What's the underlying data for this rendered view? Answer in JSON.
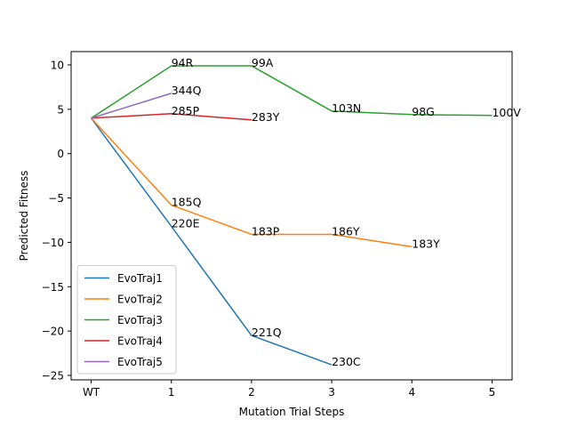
{
  "chart_data": {
    "type": "line",
    "title": "",
    "xlabel": "Mutation Trial Steps",
    "ylabel": "Predicted Fitness",
    "x_categories": [
      "WT",
      "1",
      "2",
      "3",
      "4",
      "5"
    ],
    "xlim": [
      -0.25,
      5.25
    ],
    "ylim": [
      -25.5,
      11.5
    ],
    "yticks": [
      10,
      5,
      0,
      -5,
      -10,
      -15,
      -20,
      -25
    ],
    "ytick_labels": [
      "10",
      "5",
      "0",
      "−5",
      "−10",
      "−15",
      "−20",
      "−25"
    ],
    "grid": false,
    "legend_position": "lower-left",
    "series": [
      {
        "name": "EvoTraj1",
        "color": "#1f77b4",
        "points": [
          {
            "x": 0,
            "y": 4.0,
            "label": ""
          },
          {
            "x": 1,
            "y": -8.2,
            "label": "220E"
          },
          {
            "x": 2,
            "y": -20.5,
            "label": "221Q"
          },
          {
            "x": 3,
            "y": -23.8,
            "label": "230C"
          }
        ]
      },
      {
        "name": "EvoTraj2",
        "color": "#ff7f0e",
        "points": [
          {
            "x": 0,
            "y": 4.0,
            "label": ""
          },
          {
            "x": 1,
            "y": -5.8,
            "label": "185Q"
          },
          {
            "x": 2,
            "y": -9.1,
            "label": "183P"
          },
          {
            "x": 3,
            "y": -9.1,
            "label": "186Y"
          },
          {
            "x": 4,
            "y": -10.5,
            "label": "183Y"
          }
        ]
      },
      {
        "name": "EvoTraj3",
        "color": "#2ca02c",
        "points": [
          {
            "x": 0,
            "y": 4.0,
            "label": ""
          },
          {
            "x": 1,
            "y": 9.9,
            "label": "94R"
          },
          {
            "x": 2,
            "y": 9.9,
            "label": "99A"
          },
          {
            "x": 3,
            "y": 4.8,
            "label": "103N"
          },
          {
            "x": 4,
            "y": 4.4,
            "label": "98G"
          },
          {
            "x": 5,
            "y": 4.3,
            "label": "100V"
          }
        ]
      },
      {
        "name": "EvoTraj4",
        "color": "#d62728",
        "points": [
          {
            "x": 0,
            "y": 4.0,
            "label": ""
          },
          {
            "x": 1,
            "y": 4.5,
            "label": "285P"
          },
          {
            "x": 2,
            "y": 3.8,
            "label": "283Y"
          }
        ]
      },
      {
        "name": "EvoTraj5",
        "color": "#9467bd",
        "points": [
          {
            "x": 0,
            "y": 4.0,
            "label": ""
          },
          {
            "x": 1,
            "y": 6.8,
            "label": "344Q"
          }
        ]
      }
    ]
  }
}
